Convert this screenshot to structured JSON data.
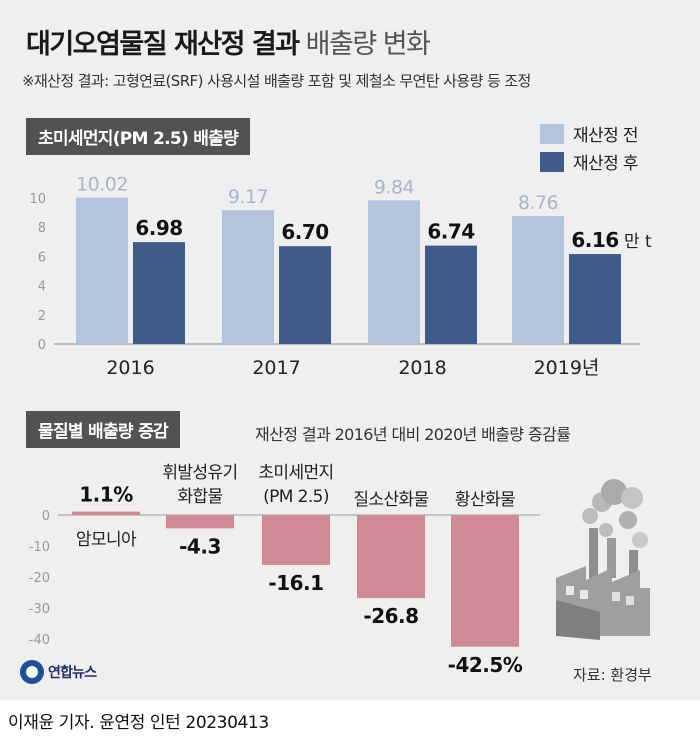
{
  "header": {
    "title_bold": "대기오염물질 재산정 결과",
    "title_light": "배출량 변화",
    "note": "※재산정 결과: 고형연료(SRF) 사용시설 배출량 포함 및 제철소 무연탄 사용량 등 조정"
  },
  "colors": {
    "before": "#b3c4dd",
    "after": "#3f5b8a",
    "change_bar": "#cf8a96",
    "tag_bg": "#525252",
    "card_bg": "#efefef"
  },
  "chart_data": [
    {
      "type": "bar",
      "title": "초미세먼지(PM 2.5) 배출량",
      "categories": [
        "2016",
        "2017",
        "2018",
        "2019년"
      ],
      "series": [
        {
          "name": "재산정 전",
          "values": [
            10.02,
            9.17,
            9.84,
            8.76
          ],
          "labels": [
            "10.02",
            "9.17",
            "9.84",
            "8.76"
          ]
        },
        {
          "name": "재산정 후",
          "values": [
            6.98,
            6.7,
            6.74,
            6.16
          ],
          "labels": [
            "6.98",
            "6.70",
            "6.74",
            "6.16"
          ]
        }
      ],
      "unit": "만 t",
      "ylim": [
        0,
        10
      ],
      "yticks": [
        "0",
        "2",
        "4",
        "6",
        "8",
        "10"
      ],
      "grid": false,
      "legend": "top-right"
    },
    {
      "type": "bar",
      "title": "물질별 배출량 증감",
      "subtitle": "재산정 결과 2016년 대비 2020년 배출량 증감률",
      "categories": [
        "암모니아",
        "휘발성유기\n화합물",
        "초미세먼지\n(PM 2.5)",
        "질소산화물",
        "황산화물"
      ],
      "values": [
        1.1,
        -4.3,
        -16.1,
        -26.8,
        -42.5
      ],
      "labels": [
        "1.1%",
        "-4.3",
        "-16.1",
        "-26.8",
        "-42.5%"
      ],
      "ylim": [
        -45,
        3
      ],
      "yticks": [
        "0",
        "-10",
        "-20",
        "-30",
        "-40"
      ],
      "grid": false
    }
  ],
  "footer": {
    "logo_text": "연합뉴스",
    "source": "자료: 환경부",
    "credit": "이재윤 기자. 윤연정 인턴  20230413"
  }
}
